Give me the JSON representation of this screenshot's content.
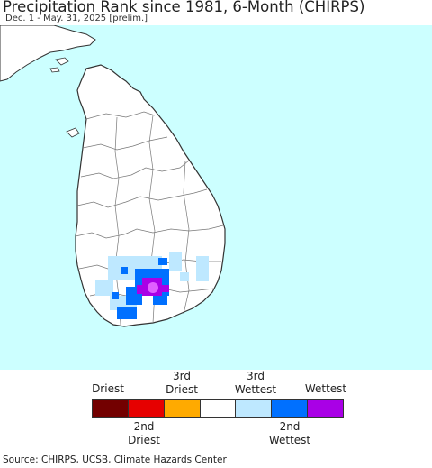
{
  "header": {
    "title": "Precipitation Rank since 1981, 6-Month (CHIRPS)",
    "subtitle": "Dec. 1 - May. 31, 2025 [prelim.]"
  },
  "map": {
    "ocean_color": "#ccffff",
    "land_color": "#ffffff",
    "border_color": "#333333"
  },
  "legend": {
    "top_labels": [
      {
        "text": "Driest"
      },
      {
        "text": "3rd\nDriest"
      },
      {
        "text": "3rd\nWettest"
      },
      {
        "text": "Wettest"
      }
    ],
    "bottom_labels": [
      {
        "text": "2nd\nDriest"
      },
      {
        "text": "2nd\nWettest"
      }
    ],
    "swatches": [
      {
        "name": "driest",
        "color": "#730000"
      },
      {
        "name": "2nd-driest",
        "color": "#e60000"
      },
      {
        "name": "3rd-driest",
        "color": "#ffaa00"
      },
      {
        "name": "normal",
        "color": "#ffffff"
      },
      {
        "name": "3rd-wettest",
        "color": "#bee8ff"
      },
      {
        "name": "2nd-wettest",
        "color": "#0070ff"
      },
      {
        "name": "wettest",
        "color": "#a900e6"
      }
    ]
  },
  "footer": {
    "source": "Source: CHIRPS, UCSB, Climate Hazards Center"
  }
}
